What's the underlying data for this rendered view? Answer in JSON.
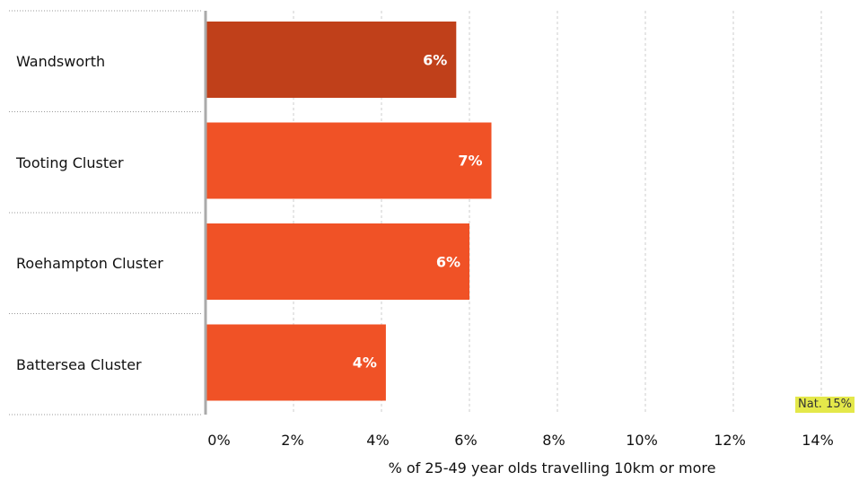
{
  "chart_data": {
    "type": "bar",
    "orientation": "horizontal",
    "categories": [
      "Wandsworth",
      "Tooting Cluster",
      "Roehampton Cluster",
      "Battersea Cluster"
    ],
    "values": [
      5.7,
      6.5,
      6.0,
      4.1
    ],
    "value_labels": [
      "6%",
      "7%",
      "6%",
      "4%"
    ],
    "colors": [
      "#c0401a",
      "#f05226",
      "#f05226",
      "#f05226"
    ],
    "xlabel": "% of 25-49 year olds travelling 10km or more",
    "xlim": [
      0,
      14
    ],
    "x_ticks": [
      "0%",
      "2%",
      "4%",
      "6%",
      "8%",
      "10%",
      "12%",
      "14%"
    ],
    "grid": "vertical dashed",
    "reference": {
      "label": "Nat. 15%",
      "value": 15,
      "color": "#e4e84a"
    }
  }
}
